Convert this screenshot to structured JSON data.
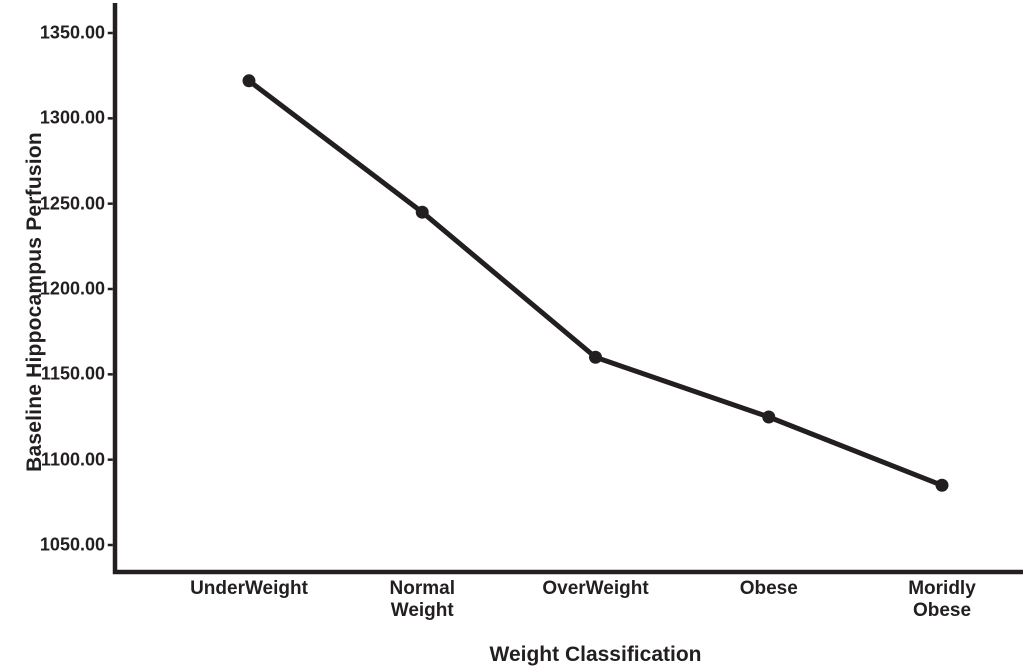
{
  "chart_data": {
    "type": "line",
    "title": "",
    "xlabel": "Weight Classification",
    "ylabel": "Baseline Hippocampus Perfusion",
    "categories": [
      "UnderWeight",
      "Normal Weight",
      "OverWeight",
      "Obese",
      "Moridly Obese"
    ],
    "x_tick_display": [
      "UnderWeight",
      "Normal\nWeight",
      "OverWeight",
      "Obese",
      "Moridly Obese"
    ],
    "series": [
      {
        "name": "Baseline Hippocampus Perfusion",
        "values": [
          1322,
          1245,
          1160,
          1125,
          1085
        ]
      }
    ],
    "y_ticks": [
      1050,
      1100,
      1150,
      1200,
      1250,
      1300,
      1350
    ],
    "y_tick_labels": [
      "1050.00",
      "1100.00",
      "1150.00",
      "1200.00",
      "1250.00",
      "1300.00",
      "1350.00"
    ],
    "ylim": [
      1050,
      1350
    ],
    "grid": false,
    "legend": "none",
    "colors": {
      "line": "#231f20",
      "marker": "#231f20",
      "axis": "#231f20",
      "text": "#231f20",
      "background": "#ffffff"
    },
    "marker": "circle"
  }
}
